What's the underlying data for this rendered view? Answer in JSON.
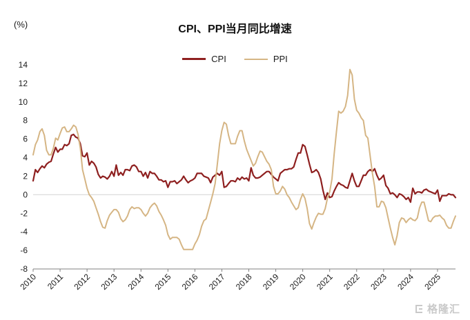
{
  "header": {
    "unit_label": "(%)",
    "title": "CPI、PPI当月同比增速"
  },
  "legend": {
    "items": [
      {
        "label": "CPI",
        "color": "#8e1f1f"
      },
      {
        "label": "PPI",
        "color": "#d5b584"
      }
    ]
  },
  "watermark": {
    "text": "格隆汇"
  },
  "chart_data": {
    "type": "line",
    "title": "CPI、PPI当月同比增速",
    "ylabel": "(%)",
    "ylim": [
      -8,
      14
    ],
    "yticks": [
      14,
      12,
      10,
      8,
      6,
      4,
      2,
      0,
      -2,
      -4,
      -6,
      -8
    ],
    "x_start": "2010-01",
    "x_end": "2025-09",
    "x_tick_labels": [
      "2010",
      "2011",
      "2012",
      "2013",
      "2014",
      "2015",
      "2016",
      "2017",
      "2018",
      "2019",
      "2020",
      "2021",
      "2022",
      "2023",
      "2024",
      "2025"
    ],
    "grid": false,
    "zero_line": true,
    "legend_position": "top",
    "axis_color": "#808080",
    "zero_line_color": "#dcdcdc",
    "series": [
      {
        "name": "CPI",
        "color": "#8e1f1f",
        "width": 2.2,
        "values": [
          1.5,
          2.7,
          2.4,
          2.8,
          3.1,
          2.9,
          3.3,
          3.5,
          3.6,
          4.4,
          5.1,
          4.6,
          4.9,
          4.9,
          5.4,
          5.3,
          5.5,
          6.4,
          6.5,
          6.2,
          6.1,
          5.5,
          4.2,
          4.1,
          4.5,
          3.2,
          3.6,
          3.4,
          3.0,
          2.2,
          1.8,
          2.0,
          1.9,
          1.7,
          2.0,
          2.5,
          2.0,
          3.2,
          2.1,
          2.4,
          2.1,
          2.7,
          2.7,
          2.6,
          3.1,
          3.2,
          3.0,
          2.5,
          2.5,
          2.0,
          2.4,
          1.8,
          2.5,
          2.3,
          2.3,
          2.0,
          1.6,
          1.6,
          1.4,
          1.5,
          0.8,
          1.4,
          1.4,
          1.5,
          1.2,
          1.4,
          1.6,
          2.0,
          1.6,
          1.3,
          1.5,
          1.6,
          1.8,
          2.3,
          2.3,
          2.3,
          2.0,
          1.9,
          1.8,
          1.3,
          1.9,
          2.1,
          2.3,
          2.1,
          2.5,
          0.8,
          0.9,
          1.2,
          1.5,
          1.5,
          1.4,
          1.8,
          1.6,
          1.9,
          1.7,
          1.8,
          1.5,
          2.9,
          2.1,
          1.8,
          1.8,
          1.9,
          2.1,
          2.3,
          2.5,
          2.5,
          2.2,
          1.9,
          1.7,
          1.5,
          2.3,
          2.5,
          2.7,
          2.7,
          2.8,
          2.8,
          3.0,
          3.8,
          4.5,
          4.5,
          5.4,
          5.2,
          4.3,
          3.3,
          2.4,
          2.5,
          2.7,
          2.4,
          1.7,
          0.5,
          -0.5,
          0.2,
          -0.3,
          -0.2,
          0.4,
          0.9,
          1.3,
          1.1,
          1.0,
          0.8,
          0.7,
          1.5,
          2.3,
          1.5,
          0.9,
          0.9,
          1.5,
          2.1,
          2.1,
          2.5,
          2.7,
          2.5,
          2.8,
          2.1,
          1.6,
          1.8,
          2.1,
          1.0,
          0.7,
          0.1,
          0.2,
          0.0,
          -0.3,
          0.1,
          0.0,
          -0.2,
          -0.5,
          -0.3,
          -0.8,
          0.7,
          0.1,
          0.3,
          0.3,
          0.2,
          0.5,
          0.6,
          0.4,
          0.3,
          0.2,
          0.1,
          0.5,
          -0.7,
          -0.1,
          -0.1,
          -0.1,
          0.1,
          0.0,
          0.0,
          -0.3
        ]
      },
      {
        "name": "PPI",
        "color": "#d5b584",
        "width": 2.0,
        "values": [
          4.3,
          5.4,
          5.9,
          6.8,
          7.1,
          6.4,
          4.8,
          4.3,
          4.3,
          5.0,
          6.1,
          5.9,
          6.6,
          7.2,
          7.3,
          6.8,
          6.8,
          7.1,
          7.5,
          7.3,
          6.5,
          5.0,
          2.7,
          1.7,
          0.7,
          0.0,
          -0.3,
          -0.7,
          -1.4,
          -2.1,
          -2.9,
          -3.5,
          -3.6,
          -2.8,
          -2.2,
          -1.9,
          -1.6,
          -1.6,
          -1.9,
          -2.6,
          -2.9,
          -2.7,
          -2.3,
          -1.6,
          -1.3,
          -1.5,
          -1.4,
          -1.4,
          -1.6,
          -2.0,
          -2.3,
          -2.0,
          -1.4,
          -1.1,
          -0.9,
          -1.2,
          -1.8,
          -2.2,
          -2.7,
          -3.3,
          -4.3,
          -4.8,
          -4.6,
          -4.6,
          -4.6,
          -4.8,
          -5.4,
          -5.9,
          -5.9,
          -5.9,
          -5.9,
          -5.9,
          -5.3,
          -4.9,
          -4.3,
          -3.4,
          -2.8,
          -2.6,
          -1.7,
          -0.8,
          0.1,
          1.2,
          3.3,
          5.5,
          6.9,
          7.8,
          7.6,
          6.4,
          5.5,
          5.5,
          5.5,
          6.3,
          6.9,
          6.9,
          5.8,
          4.9,
          4.3,
          3.7,
          3.1,
          3.4,
          4.1,
          4.7,
          4.6,
          4.1,
          3.6,
          3.3,
          2.7,
          0.9,
          0.1,
          0.1,
          0.4,
          0.9,
          0.6,
          0.0,
          -0.3,
          -0.8,
          -1.2,
          -1.6,
          -1.4,
          -0.5,
          0.1,
          -0.4,
          -1.5,
          -3.1,
          -3.7,
          -3.0,
          -2.4,
          -2.0,
          -2.1,
          -2.1,
          -1.5,
          -0.4,
          0.3,
          1.7,
          4.4,
          6.8,
          9.0,
          8.8,
          9.0,
          9.5,
          10.7,
          13.5,
          12.9,
          10.3,
          9.1,
          8.8,
          8.3,
          8.0,
          6.4,
          6.1,
          4.2,
          2.3,
          0.9,
          -1.3,
          -1.3,
          -0.7,
          -0.8,
          -1.4,
          -2.5,
          -3.6,
          -4.6,
          -5.4,
          -4.4,
          -3.0,
          -2.5,
          -2.6,
          -3.0,
          -2.7,
          -2.5,
          -2.7,
          -2.8,
          -2.5,
          -1.4,
          -0.8,
          -0.8,
          -1.8,
          -2.8,
          -2.9,
          -2.5,
          -2.3,
          -2.3,
          -2.2,
          -2.5,
          -2.7,
          -3.3,
          -3.6,
          -3.6,
          -2.9,
          -2.3
        ]
      }
    ]
  }
}
